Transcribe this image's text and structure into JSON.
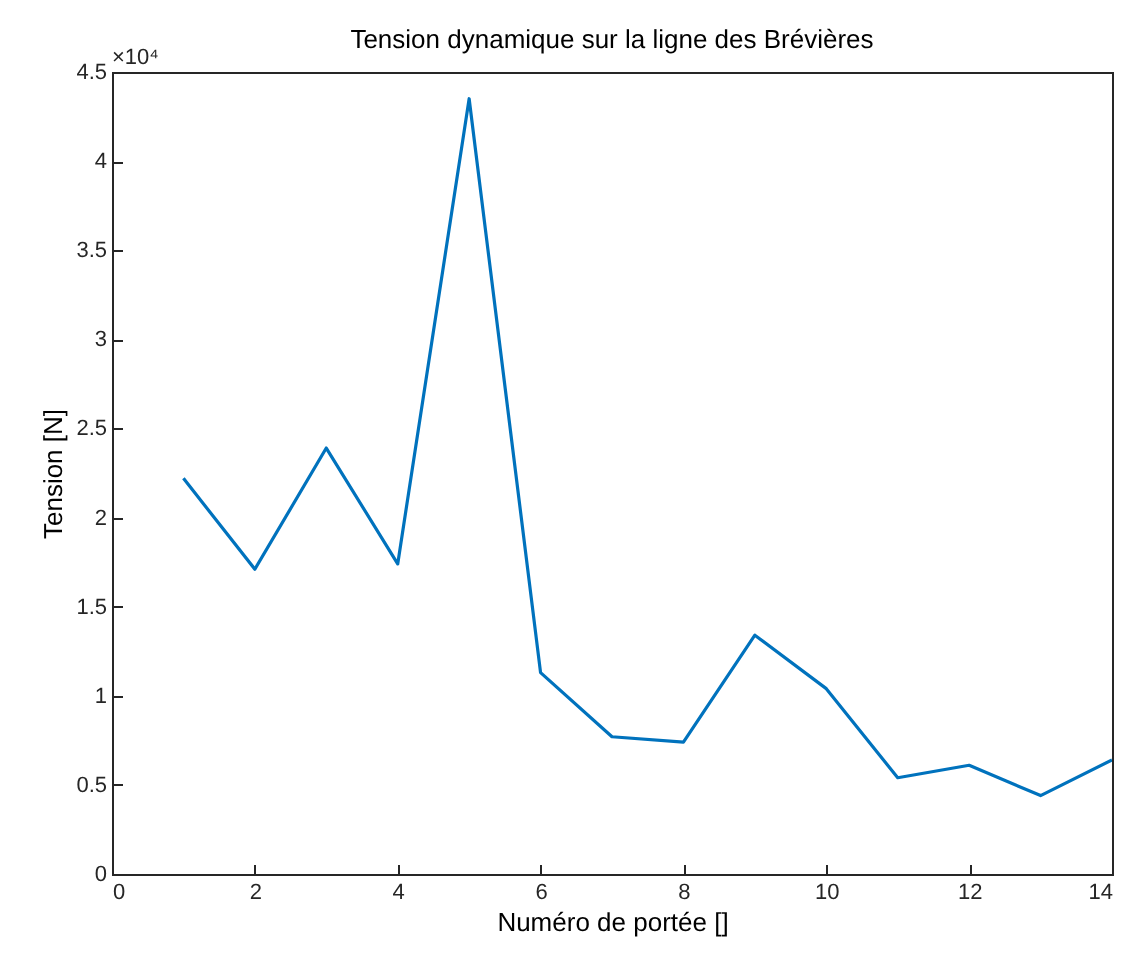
{
  "chart_data": {
    "type": "line",
    "title": "Tension dynamique sur la ligne des Brévières",
    "xlabel": "Numéro de portée []",
    "ylabel": "Tension [N]",
    "annotations": [
      "×10⁴"
    ],
    "x": [
      1,
      2,
      3,
      4,
      5,
      6,
      7,
      8,
      9,
      10,
      11,
      12,
      13,
      14
    ],
    "series": [
      {
        "color": "#0072bd",
        "values": [
          2.22,
          1.71,
          2.39,
          1.74,
          4.35,
          1.13,
          0.77,
          0.74,
          1.34,
          1.04,
          0.54,
          0.61,
          0.44,
          0.64
        ]
      }
    ],
    "xlim": [
      0,
      14
    ],
    "xticks": [
      0,
      2,
      4,
      6,
      8,
      10,
      12,
      14
    ],
    "ylim": [
      0,
      4.5
    ],
    "yticks": [
      0,
      0.5,
      1,
      1.5,
      2,
      2.5,
      3,
      3.5,
      4,
      4.5
    ]
  }
}
